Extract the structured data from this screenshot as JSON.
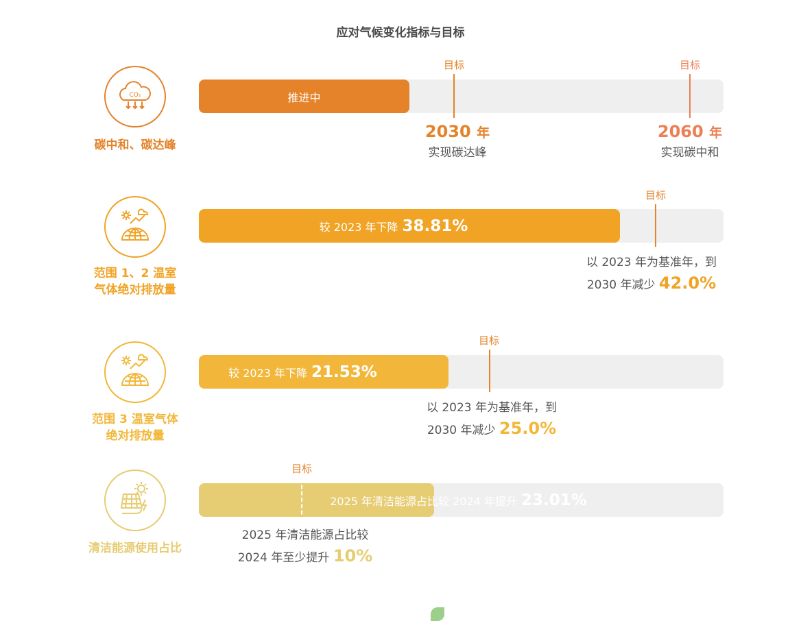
{
  "title": "应对气候变化指标与目标",
  "colors": {
    "row1": "#e4832a",
    "row1_alt": "#ec7f55",
    "row2": "#f0a325",
    "row3": "#f2b73a",
    "row4": "#e6cc72",
    "track": "#efefef"
  },
  "rows": {
    "r1": {
      "label": "碳中和、碳达峰",
      "icon": "co2-cloud-icon",
      "bar_text": "推进中",
      "m1": {
        "tag": "目标",
        "year": "2030",
        "unit": "年",
        "desc": "实现碳达峰"
      },
      "m2": {
        "tag": "目标",
        "year": "2060",
        "unit": "年",
        "desc": "实现碳中和"
      }
    },
    "r2": {
      "label_l1": "范围 1、2 温室",
      "label_l2": "气体绝对排放量",
      "icon": "globe-emission-icon",
      "bar_prefix": "较 2023 年下降",
      "bar_value": "38.81%",
      "tag": "目标",
      "note_l1": "以 2023 年为基准年，到",
      "note_l2": "2030 年减少",
      "note_value": "42.0%"
    },
    "r3": {
      "label_l1": "范围 3 温室气体",
      "label_l2": "绝对排放量",
      "icon": "globe-emission-icon",
      "bar_prefix": "较 2023 年下降",
      "bar_value": "21.53%",
      "tag": "目标",
      "note_l1": "以 2023 年为基准年，到",
      "note_l2": "2030 年减少",
      "note_value": "25.0%"
    },
    "r4": {
      "label": "清洁能源使用占比",
      "icon": "solar-panel-icon",
      "bar_prefix": "2025 年清洁能源占比较 2024 年提升",
      "bar_value": "23.01%",
      "tag": "目标",
      "note_l1": "2025 年清洁能源占比较",
      "note_l2": "2024 年至少提升",
      "note_value": "10%"
    }
  },
  "chart_data": {
    "type": "bar",
    "orientation": "horizontal",
    "title": "应对气候变化指标与目标",
    "categories": [
      "碳中和、碳达峰",
      "范围 1、2 温室气体绝对排放量",
      "范围 3 温室气体绝对排放量",
      "清洁能源使用占比"
    ],
    "series": [
      {
        "name": "",
        "values": [
          null,
          38.81,
          21.53,
          23.01
        ]
      }
    ],
    "targets": [
      {
        "category": "碳中和、碳达峰",
        "milestones": [
          "2030 年 实现碳达峰",
          "2060 年 实现碳中和"
        ]
      },
      {
        "category": "范围 1、2 温室气体绝对排放量",
        "value": 42.0
      },
      {
        "category": "范围 3 温室气体绝对排放量",
        "value": 25.0
      },
      {
        "category": "清洁能源使用占比",
        "value": 10
      }
    ],
    "status": {
      "碳中和、碳达峰": "推进中"
    },
    "grid": false
  }
}
